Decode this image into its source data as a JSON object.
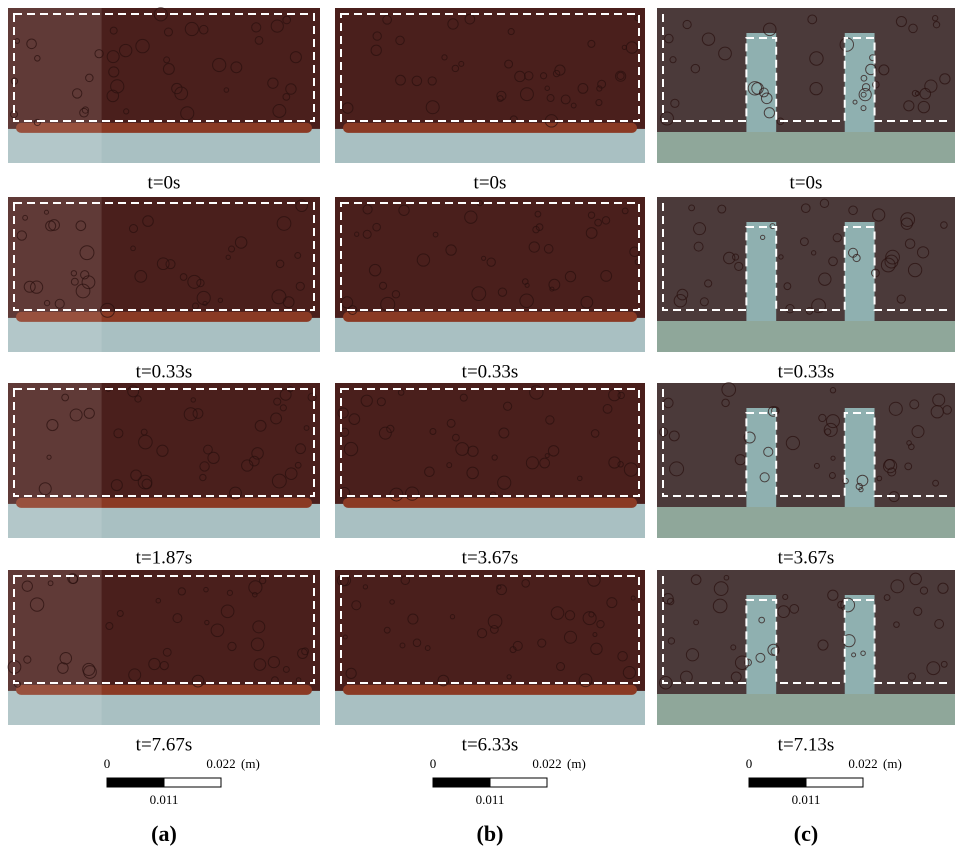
{
  "columns": [
    {
      "label": "(a)",
      "frames": [
        {
          "caption": "t=0s"
        },
        {
          "caption": "t=0.33s"
        },
        {
          "caption": "t=1.87s"
        },
        {
          "caption": "t=7.67s"
        }
      ],
      "scale": {
        "start": "0",
        "end": "0.022",
        "unit": "(m)",
        "mid": "0.011"
      }
    },
    {
      "label": "(b)",
      "frames": [
        {
          "caption": "t=0s"
        },
        {
          "caption": "t=0.33s"
        },
        {
          "caption": "t=3.67s"
        },
        {
          "caption": "t=6.33s"
        }
      ],
      "scale": {
        "start": "0",
        "end": "0.022",
        "unit": "(m)",
        "mid": "0.011"
      }
    },
    {
      "label": "(c)",
      "frames": [
        {
          "caption": "t=0s"
        },
        {
          "caption": "t=0.33s"
        },
        {
          "caption": "t=3.67s"
        },
        {
          "caption": "t=7.13s"
        }
      ],
      "scale": {
        "start": "0",
        "end": "0.022",
        "unit": "(m)",
        "mid": "0.011"
      }
    }
  ]
}
